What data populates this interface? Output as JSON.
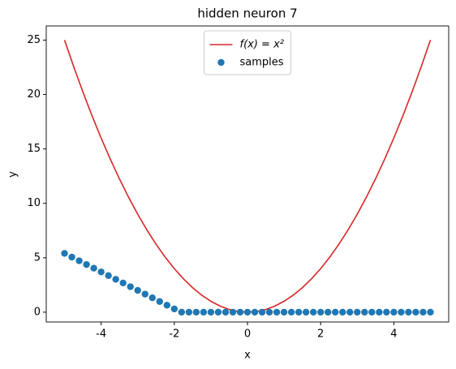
{
  "chart_data": {
    "type": "line",
    "title": "hidden neuron 7",
    "x_label": "x",
    "y_label": "y",
    "xlim": [
      -5.5,
      5.5
    ],
    "ylim": [
      -0.9,
      26.3
    ],
    "xticks": [
      -4,
      -2,
      0,
      2,
      4
    ],
    "yticks": [
      0,
      5,
      10,
      15,
      20,
      25
    ],
    "legend": "upper center",
    "series": [
      {
        "name": "f(x) = x²",
        "type": "line",
        "color": "#d62728",
        "x": [
          -5,
          -4.75,
          -4.5,
          -4.25,
          -4,
          -3.75,
          -3.5,
          -3.25,
          -3,
          -2.75,
          -2.5,
          -2.25,
          -2,
          -1.75,
          -1.5,
          -1.25,
          -1,
          -0.75,
          -0.5,
          -0.25,
          0,
          0.25,
          0.5,
          0.75,
          1,
          1.25,
          1.5,
          1.75,
          2,
          2.25,
          2.5,
          2.75,
          3,
          3.25,
          3.5,
          3.75,
          4,
          4.25,
          4.5,
          4.75,
          5
        ],
        "values": [
          25,
          22.5625,
          20.25,
          18.0625,
          16,
          14.0625,
          12.25,
          10.5625,
          9,
          7.5625,
          6.25,
          5.0625,
          4,
          3.0625,
          2.25,
          1.5625,
          1,
          0.5625,
          0.25,
          0.0625,
          0,
          0.0625,
          0.25,
          0.5625,
          1,
          1.5625,
          2.25,
          3.0625,
          4,
          5.0625,
          6.25,
          7.5625,
          9,
          10.5625,
          12.25,
          14.0625,
          16,
          18.0625,
          20.25,
          22.5625,
          25
        ]
      },
      {
        "name": "samples",
        "type": "scatter",
        "color": "#1f77b4",
        "x": [
          -5,
          -4.8,
          -4.6,
          -4.4,
          -4.2,
          -4,
          -3.8,
          -3.6,
          -3.4,
          -3.2,
          -3,
          -2.8,
          -2.6,
          -2.4,
          -2.2,
          -2,
          -1.8,
          -1.6,
          -1.4,
          -1.2,
          -1,
          -0.8,
          -0.6,
          -0.4,
          -0.2,
          0,
          0.2,
          0.4,
          0.6,
          0.8,
          1,
          1.2,
          1.4,
          1.6,
          1.8,
          2,
          2.2,
          2.4,
          2.6,
          2.8,
          3,
          3.2,
          3.4,
          3.6,
          3.8,
          4,
          4.2,
          4.4,
          4.6,
          4.8,
          5
        ],
        "values": [
          5.4,
          5.06,
          4.72,
          4.38,
          4.04,
          3.7,
          3.36,
          3.02,
          2.68,
          2.34,
          2,
          1.66,
          1.32,
          0.98,
          0.64,
          0.3,
          0,
          0,
          0,
          0,
          0,
          0,
          0,
          0,
          0,
          0,
          0,
          0,
          0,
          0,
          0,
          0,
          0,
          0,
          0,
          0,
          0,
          0,
          0,
          0,
          0,
          0,
          0,
          0,
          0,
          0,
          0,
          0,
          0,
          0,
          0
        ]
      }
    ]
  }
}
